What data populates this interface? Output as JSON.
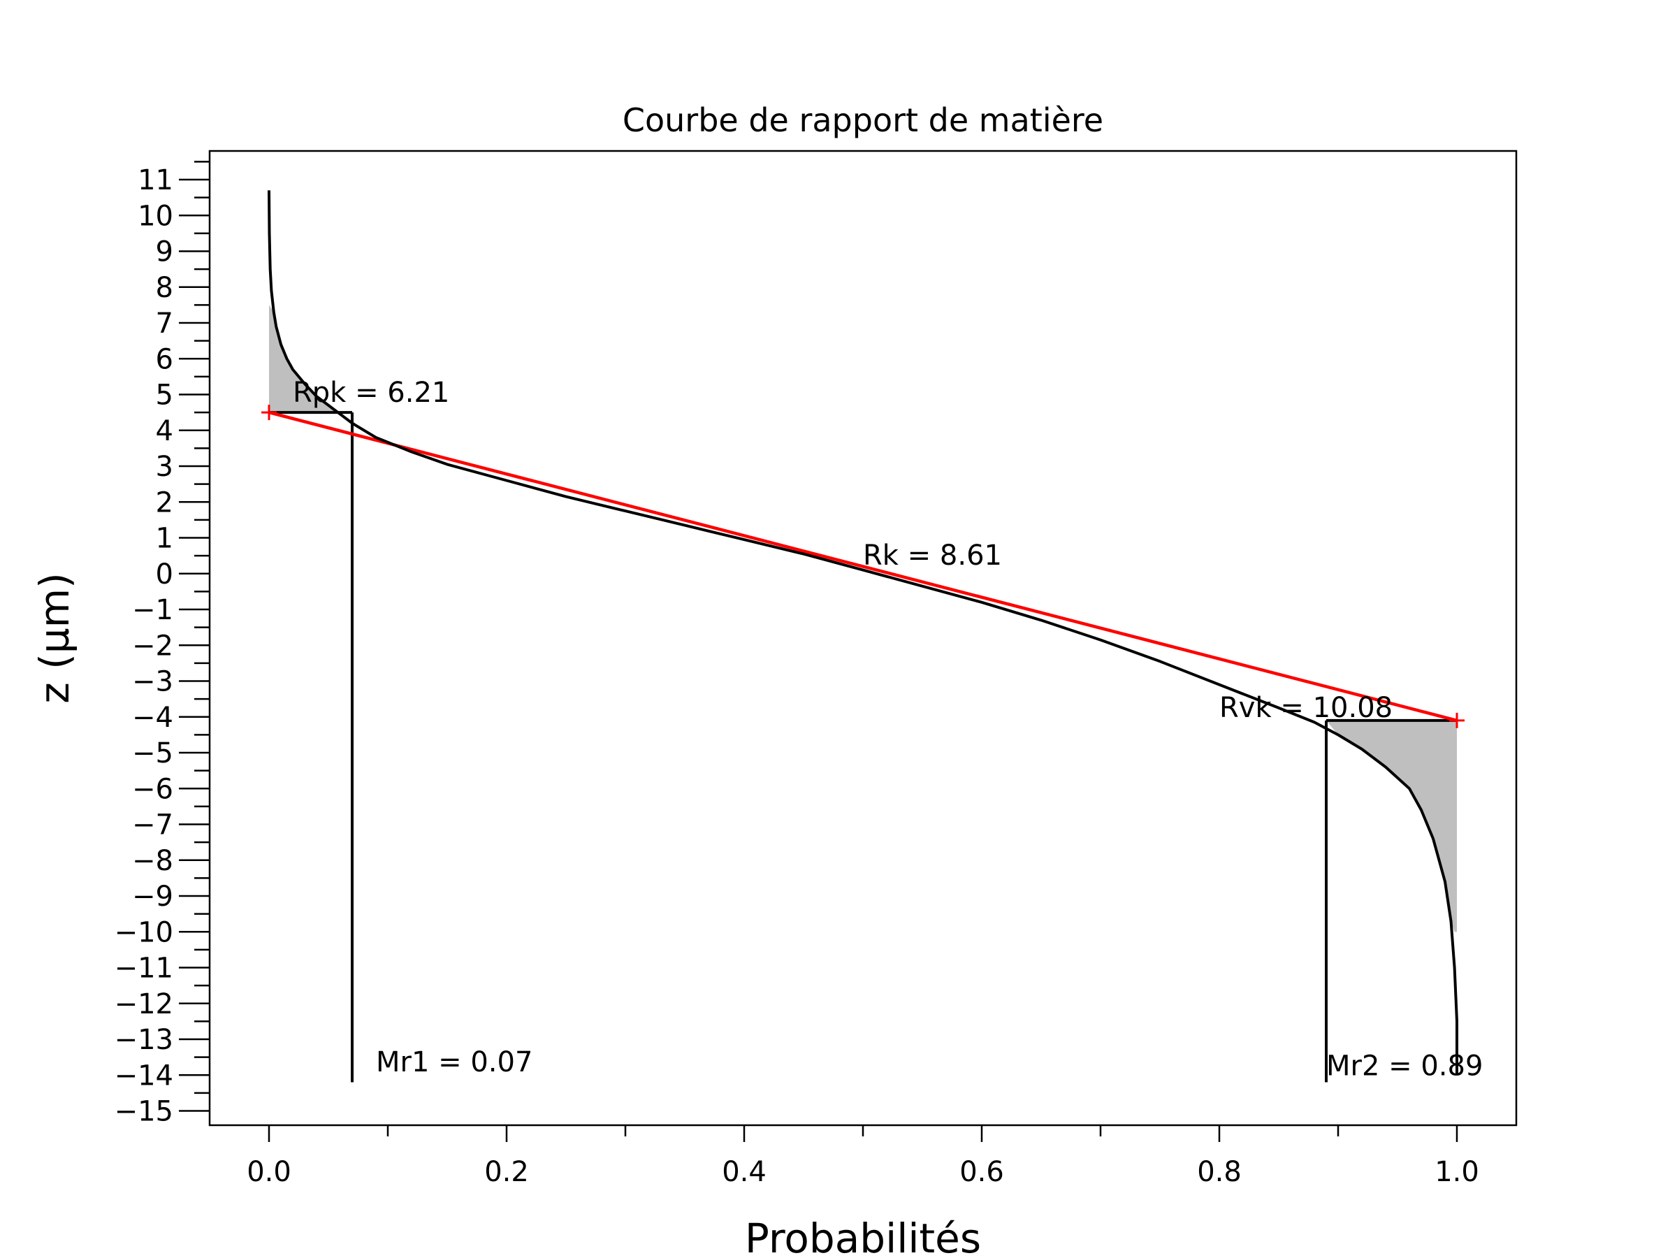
{
  "chart_data": {
    "type": "line",
    "title": "Courbe de rapport de matière",
    "xlabel": "Probabilités",
    "ylabel": "z (µm)",
    "xlim": [
      -0.05,
      1.05
    ],
    "ylim": [
      -15.4,
      11.8
    ],
    "x_ticks": [
      0.0,
      0.2,
      0.4,
      0.6,
      0.8,
      1.0
    ],
    "x_tick_labels": [
      "0.0",
      "0.2",
      "0.4",
      "0.6",
      "0.8",
      "1.0"
    ],
    "x_minor_ticks": [
      0.1,
      0.3,
      0.5,
      0.7,
      0.9
    ],
    "y_ticks": [
      11,
      10,
      9,
      8,
      7,
      6,
      5,
      4,
      3,
      2,
      1,
      0,
      -1,
      -2,
      -3,
      -4,
      -5,
      -6,
      -7,
      -8,
      -9,
      -10,
      -11,
      -12,
      -13,
      -14,
      -15
    ],
    "y_tick_labels": [
      "11",
      "10",
      "9",
      "8",
      "7",
      "6",
      "5",
      "4",
      "3",
      "2",
      "1",
      "0",
      "−1",
      "−2",
      "−3",
      "−4",
      "−5",
      "−6",
      "−7",
      "−8",
      "−9",
      "−10",
      "−11",
      "−12",
      "−13",
      "−14",
      "−15"
    ],
    "grid": false,
    "series": [
      {
        "role": "material-ratio-curve",
        "color": "#000000",
        "x": [
          0.0,
          0.0003,
          0.001,
          0.002,
          0.004,
          0.006,
          0.01,
          0.015,
          0.02,
          0.03,
          0.04,
          0.05,
          0.06,
          0.07,
          0.09,
          0.12,
          0.15,
          0.2,
          0.25,
          0.3,
          0.35,
          0.4,
          0.45,
          0.5,
          0.55,
          0.6,
          0.65,
          0.7,
          0.75,
          0.8,
          0.85,
          0.88,
          0.9,
          0.92,
          0.94,
          0.96,
          0.97,
          0.98,
          0.99,
          0.995,
          0.998,
          1.0,
          1.0
        ],
        "y": [
          10.7,
          9.5,
          8.5,
          7.9,
          7.3,
          6.9,
          6.4,
          6.0,
          5.7,
          5.3,
          4.95,
          4.7,
          4.45,
          4.2,
          3.8,
          3.4,
          3.05,
          2.6,
          2.15,
          1.75,
          1.35,
          0.95,
          0.55,
          0.1,
          -0.35,
          -0.8,
          -1.3,
          -1.85,
          -2.45,
          -3.1,
          -3.75,
          -4.15,
          -4.5,
          -4.9,
          -5.4,
          -6.0,
          -6.6,
          -7.4,
          -8.6,
          -9.7,
          -11.0,
          -12.5,
          -14.0
        ]
      },
      {
        "role": "equivalent-line",
        "color": "#ff0000",
        "x": [
          0.0,
          1.0
        ],
        "y": [
          4.5,
          -4.1
        ]
      }
    ],
    "markers": [
      {
        "x": 0.0,
        "y": 4.5,
        "shape": "+",
        "color": "#ff0000"
      },
      {
        "x": 1.0,
        "y": -4.1,
        "shape": "+",
        "color": "#ff0000"
      }
    ],
    "shaded_regions": [
      {
        "color": "#bfbfbf",
        "x": [
          0.0,
          0.0,
          0.004,
          0.01,
          0.02,
          0.03,
          0.04,
          0.05,
          0.06,
          0.07
        ],
        "y": [
          4.5,
          7.5,
          7.3,
          6.4,
          5.7,
          5.3,
          4.95,
          4.7,
          4.45,
          4.5
        ]
      },
      {
        "color": "#bfbfbf",
        "x": [
          0.89,
          0.9,
          0.92,
          0.94,
          0.96,
          0.97,
          0.98,
          0.99,
          0.995,
          0.998,
          1.0,
          1.0
        ],
        "y": [
          -4.1,
          -4.5,
          -4.9,
          -5.4,
          -6.0,
          -6.6,
          -7.4,
          -8.6,
          -9.7,
          -10.0,
          -10.0,
          -4.1
        ]
      }
    ],
    "reference_lines": [
      {
        "x": [
          0.0,
          0.07
        ],
        "y": [
          4.5,
          4.5
        ],
        "color": "#000000"
      },
      {
        "x": [
          0.07,
          0.07
        ],
        "y": [
          4.5,
          -14.2
        ],
        "color": "#000000"
      },
      {
        "x": [
          0.89,
          1.0
        ],
        "y": [
          -4.1,
          -4.1
        ],
        "color": "#000000"
      },
      {
        "x": [
          0.89,
          0.89
        ],
        "y": [
          -4.1,
          -14.2
        ],
        "color": "#000000"
      }
    ],
    "annotations": [
      {
        "text": "Rpk = 6.21",
        "x": 0.02,
        "y": 4.8
      },
      {
        "text": "Rk = 8.61",
        "x": 0.5,
        "y": 0.25
      },
      {
        "text": "Rvk = 10.08",
        "x": 0.8,
        "y": -4.0
      },
      {
        "text": "Mr1 = 0.07",
        "x": 0.09,
        "y": -13.9
      },
      {
        "text": "Mr2 = 0.89",
        "x": 0.89,
        "y": -14.0
      }
    ]
  }
}
